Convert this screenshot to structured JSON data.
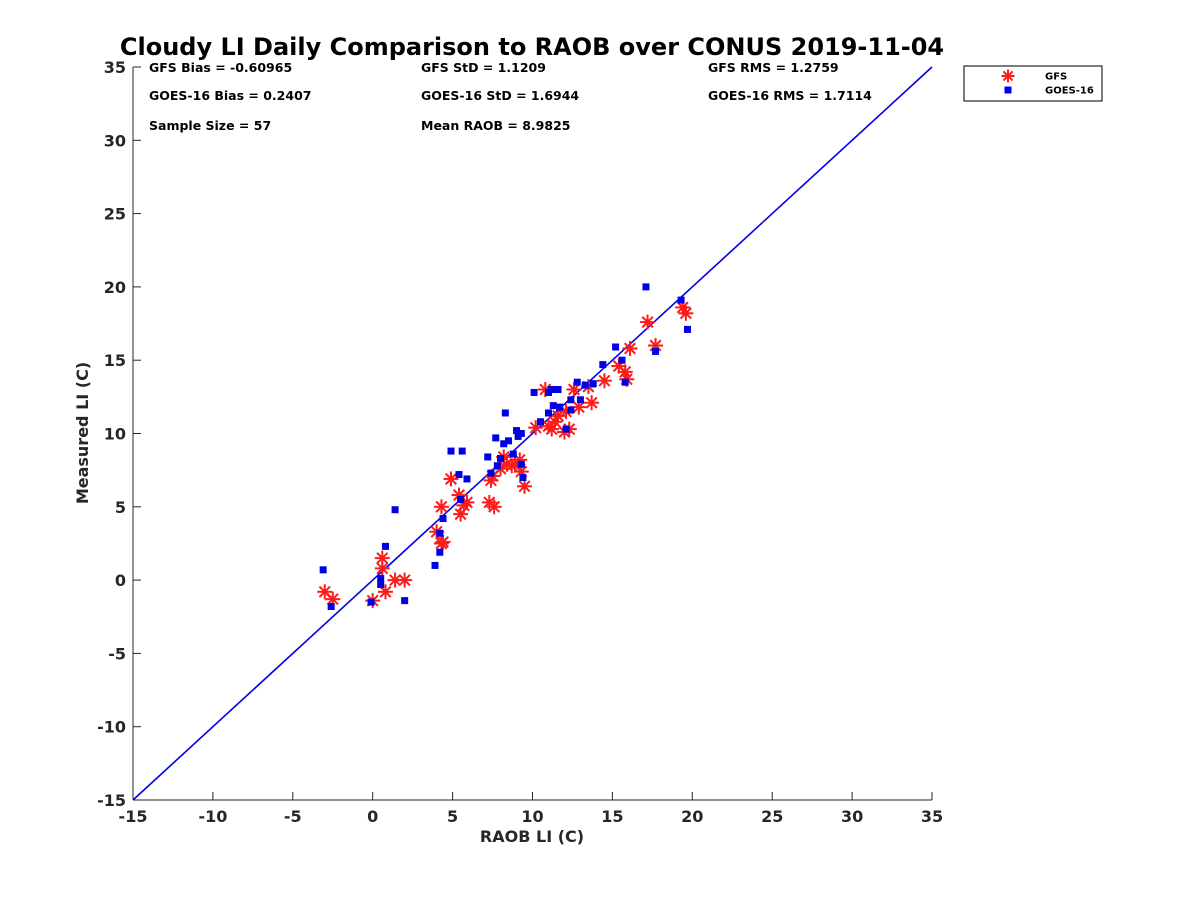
{
  "chart_data": {
    "type": "scatter",
    "title": "Cloudy LI Daily Comparison to RAOB over CONUS 2019-11-04",
    "xlabel": "RAOB LI (C)",
    "ylabel": "Measured LI (C)",
    "xlim": [
      -15,
      35
    ],
    "ylim": [
      -15,
      35
    ],
    "xticks": [
      "-15",
      "-10",
      "-5",
      "0",
      "5",
      "10",
      "15",
      "20",
      "25",
      "30",
      "35"
    ],
    "yticks": [
      "-15",
      "-10",
      "-5",
      "0",
      "5",
      "10",
      "15",
      "20",
      "25",
      "30",
      "35"
    ],
    "grid": false,
    "legend_position": "outside-top-right",
    "stats": [
      [
        "GFS Bias = -0.60965",
        "GFS StD = 1.1209",
        "GFS RMS = 1.2759"
      ],
      [
        "GOES-16 Bias = 0.2407",
        "GOES-16 StD = 1.6944",
        "GOES-16 RMS = 1.7114"
      ],
      [
        "Sample Size = 57",
        "Mean RAOB = 8.9825",
        ""
      ]
    ],
    "reference_line": {
      "x": [
        -15,
        35
      ],
      "y": [
        -15,
        35
      ],
      "color": "#0000e6"
    },
    "series": [
      {
        "name": "GFS",
        "marker": "asterisk",
        "color": "#ff1a1a",
        "points": [
          [
            -3.0,
            -0.8
          ],
          [
            -2.5,
            -1.3
          ],
          [
            0.0,
            -1.4
          ],
          [
            0.6,
            0.8
          ],
          [
            0.6,
            1.5
          ],
          [
            0.8,
            -0.8
          ],
          [
            1.4,
            0.0
          ],
          [
            2.0,
            0.0
          ],
          [
            4.0,
            3.3
          ],
          [
            4.3,
            5.0
          ],
          [
            4.3,
            2.5
          ],
          [
            4.4,
            2.6
          ],
          [
            4.9,
            6.9
          ],
          [
            5.4,
            5.8
          ],
          [
            5.5,
            4.5
          ],
          [
            5.7,
            5.1
          ],
          [
            5.9,
            5.3
          ],
          [
            7.3,
            5.3
          ],
          [
            7.4,
            6.8
          ],
          [
            7.5,
            7.1
          ],
          [
            7.6,
            5.0
          ],
          [
            8.0,
            7.6
          ],
          [
            8.2,
            8.4
          ],
          [
            8.4,
            7.9
          ],
          [
            8.7,
            7.8
          ],
          [
            8.9,
            7.9
          ],
          [
            9.2,
            8.2
          ],
          [
            9.3,
            7.4
          ],
          [
            9.5,
            6.4
          ],
          [
            10.2,
            10.4
          ],
          [
            10.8,
            13.0
          ],
          [
            11.0,
            10.5
          ],
          [
            11.2,
            10.3
          ],
          [
            11.4,
            10.8
          ],
          [
            11.6,
            11.2
          ],
          [
            12.0,
            10.1
          ],
          [
            12.3,
            10.3
          ],
          [
            12.1,
            11.5
          ],
          [
            12.6,
            13.0
          ],
          [
            12.9,
            11.8
          ],
          [
            13.5,
            13.2
          ],
          [
            13.7,
            12.1
          ],
          [
            14.5,
            13.6
          ],
          [
            15.4,
            14.6
          ],
          [
            15.8,
            14.2
          ],
          [
            15.9,
            13.7
          ],
          [
            16.1,
            15.8
          ],
          [
            17.2,
            17.6
          ],
          [
            17.7,
            16.0
          ],
          [
            19.4,
            18.6
          ],
          [
            19.6,
            18.2
          ]
        ]
      },
      {
        "name": "GOES-16",
        "marker": "square",
        "color": "#0000e6",
        "points": [
          [
            -3.1,
            0.7
          ],
          [
            -2.6,
            -1.8
          ],
          [
            -0.1,
            -1.5
          ],
          [
            0.5,
            0.1
          ],
          [
            0.5,
            -0.3
          ],
          [
            0.8,
            2.3
          ],
          [
            1.4,
            4.8
          ],
          [
            2.0,
            -1.4
          ],
          [
            3.9,
            1.0
          ],
          [
            4.2,
            3.2
          ],
          [
            4.2,
            1.9
          ],
          [
            4.4,
            4.2
          ],
          [
            4.9,
            8.8
          ],
          [
            5.4,
            7.2
          ],
          [
            5.6,
            8.8
          ],
          [
            5.9,
            6.9
          ],
          [
            5.5,
            5.5
          ],
          [
            7.2,
            8.4
          ],
          [
            7.4,
            7.3
          ],
          [
            7.7,
            9.7
          ],
          [
            7.8,
            7.8
          ],
          [
            8.0,
            8.3
          ],
          [
            8.2,
            9.3
          ],
          [
            8.3,
            11.4
          ],
          [
            8.5,
            9.5
          ],
          [
            8.8,
            8.6
          ],
          [
            9.0,
            10.2
          ],
          [
            9.1,
            9.8
          ],
          [
            9.3,
            10.0
          ],
          [
            9.3,
            7.9
          ],
          [
            9.4,
            7.0
          ],
          [
            10.1,
            12.8
          ],
          [
            10.5,
            10.8
          ],
          [
            11.0,
            12.8
          ],
          [
            11.0,
            11.4
          ],
          [
            11.2,
            13.0
          ],
          [
            11.3,
            11.9
          ],
          [
            11.6,
            13.0
          ],
          [
            11.7,
            11.8
          ],
          [
            12.1,
            10.3
          ],
          [
            12.4,
            12.3
          ],
          [
            12.4,
            11.6
          ],
          [
            12.8,
            13.5
          ],
          [
            13.0,
            12.3
          ],
          [
            13.3,
            13.3
          ],
          [
            13.8,
            13.4
          ],
          [
            14.4,
            14.7
          ],
          [
            15.2,
            15.9
          ],
          [
            15.6,
            15.0
          ],
          [
            15.8,
            13.5
          ],
          [
            17.1,
            20.0
          ],
          [
            17.7,
            15.6
          ],
          [
            19.3,
            19.1
          ],
          [
            19.7,
            17.1
          ]
        ]
      }
    ]
  }
}
